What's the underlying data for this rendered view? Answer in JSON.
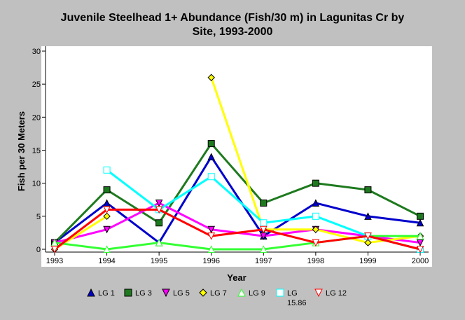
{
  "chart_data": {
    "type": "line",
    "title_line1": "Juvenile Steelhead 1+ Abundance (Fish/30 m) in Lagunitas Cr by",
    "title_line2": "Site, 1993-2000",
    "xlabel": "Year",
    "ylabel": "Fish per 30 Meters",
    "x": [
      1993,
      1994,
      1995,
      1996,
      1997,
      1998,
      1999,
      2000
    ],
    "xlim": [
      1993,
      2000
    ],
    "ylim": [
      0,
      30
    ],
    "yticks": [
      0,
      5,
      10,
      15,
      20,
      25,
      30
    ],
    "grid": false,
    "legend_position": "bottom",
    "series": [
      {
        "name": "LG 1",
        "color": "#0000cc",
        "marker": "triangle-up",
        "filled": true,
        "values": [
          1,
          7,
          1,
          14,
          2,
          7,
          5,
          4
        ]
      },
      {
        "name": "LG 3",
        "color": "#1e7a1e",
        "marker": "square",
        "filled": true,
        "values": [
          1,
          9,
          4,
          16,
          7,
          10,
          9,
          5
        ]
      },
      {
        "name": "LG 5",
        "color": "#ff00ff",
        "marker": "triangle-down",
        "filled": true,
        "values": [
          1,
          3,
          7,
          3,
          2,
          3,
          2,
          1
        ]
      },
      {
        "name": "LG 7",
        "color": "#ffff00",
        "marker": "diamond",
        "filled": true,
        "values": [
          0,
          5,
          null,
          26,
          3,
          3,
          1,
          2
        ]
      },
      {
        "name": "LG 9",
        "color": "#33ff33",
        "marker": "triangle-up",
        "filled": false,
        "values": [
          1,
          0,
          1,
          0,
          0,
          1,
          2,
          2
        ]
      },
      {
        "name": "LG 15.86",
        "color": "#00ffff",
        "marker": "square",
        "filled": false,
        "values": [
          null,
          12,
          6,
          11,
          4,
          5,
          2,
          0
        ]
      },
      {
        "name": "LG 12",
        "color": "#ff0000",
        "marker": "triangle-down",
        "filled": false,
        "values": [
          0,
          6,
          6,
          2,
          3,
          1,
          2,
          0
        ]
      }
    ]
  }
}
